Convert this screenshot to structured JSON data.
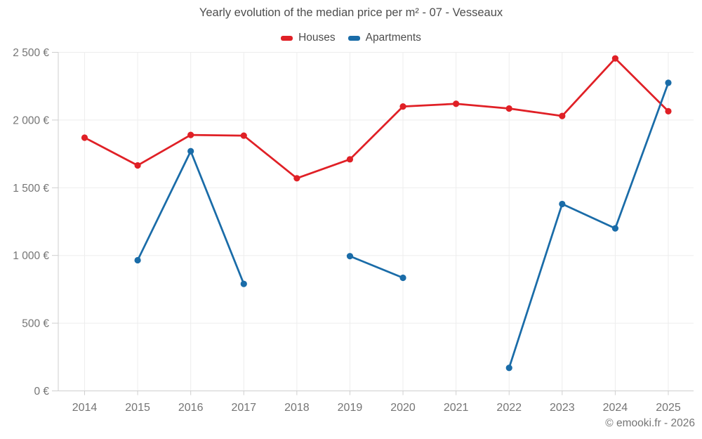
{
  "page": {
    "caption": "© emooki.fr - 2026"
  },
  "chart_data": {
    "type": "line",
    "title": "Yearly evolution of the median price per m² - 07 - Vesseaux",
    "xlabel": "",
    "ylabel": "",
    "ylim": [
      0,
      2500
    ],
    "grid": true,
    "legend_position": "top",
    "categories": [
      "2014",
      "2015",
      "2016",
      "2017",
      "2018",
      "2019",
      "2020",
      "2021",
      "2022",
      "2023",
      "2024",
      "2025"
    ],
    "y_ticks": [
      {
        "value": 0,
        "label": "0 €"
      },
      {
        "value": 500,
        "label": "500 €"
      },
      {
        "value": 1000,
        "label": "1 000 €"
      },
      {
        "value": 1500,
        "label": "1 500 €"
      },
      {
        "value": 2000,
        "label": "2 000 €"
      },
      {
        "value": 2500,
        "label": "2 500 €"
      }
    ],
    "series": [
      {
        "name": "Houses",
        "color": "#e02026",
        "values": [
          1870,
          1665,
          1890,
          1885,
          1570,
          1710,
          2100,
          2120,
          2085,
          2030,
          2455,
          2065
        ]
      },
      {
        "name": "Apartments",
        "color": "#1a6ca8",
        "values": [
          null,
          965,
          1770,
          790,
          null,
          995,
          835,
          null,
          170,
          1380,
          1200,
          2275
        ]
      }
    ]
  }
}
